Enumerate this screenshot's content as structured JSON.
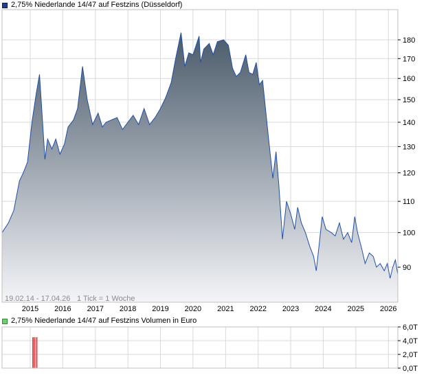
{
  "legend": {
    "main": "2,75% Niederlande 14/47 auf Festzins (Düsseldorf)",
    "volume": "2,75% Niederlande 14/47 auf Festzins Volumen in Euro"
  },
  "info": {
    "range": "19.02.14 - 17.04.26",
    "tick": "1 Tick = 1 Woche"
  },
  "colors": {
    "line": "#1f4fa8",
    "fill_top": "#4a5a6a",
    "fill_bottom": "#f4f5f8",
    "volume_bar": "#d94a4a",
    "grid": "#d9d9d9"
  },
  "chart_data": [
    {
      "type": "area",
      "ylim": [
        80,
        185
      ],
      "y_scale": "log",
      "grid": true,
      "yticks": [
        {
          "value": 90,
          "label": "90"
        },
        {
          "value": 100,
          "label": "100"
        },
        {
          "value": 110,
          "label": "110"
        },
        {
          "value": 120,
          "label": "120"
        },
        {
          "value": 130,
          "label": "130"
        },
        {
          "value": 140,
          "label": "140"
        },
        {
          "value": 150,
          "label": "150"
        },
        {
          "value": 160,
          "label": "160"
        },
        {
          "value": 170,
          "label": "170"
        },
        {
          "value": 180,
          "label": "180"
        }
      ],
      "xlim": [
        "2014-02-19",
        "2026-04-17"
      ],
      "xticks": [
        {
          "date": "2015-01-01",
          "label": "2015"
        },
        {
          "date": "2016-01-01",
          "label": "2016"
        },
        {
          "date": "2017-01-01",
          "label": "2017"
        },
        {
          "date": "2018-01-01",
          "label": "2018"
        },
        {
          "date": "2019-01-01",
          "label": "2019"
        },
        {
          "date": "2020-01-01",
          "label": "2020"
        },
        {
          "date": "2021-01-01",
          "label": "2021"
        },
        {
          "date": "2022-01-01",
          "label": "2022"
        },
        {
          "date": "2023-01-01",
          "label": "2023"
        },
        {
          "date": "2024-01-01",
          "label": "2024"
        },
        {
          "date": "2025-01-01",
          "label": "2025"
        },
        {
          "date": "2026-01-01",
          "label": "2026"
        }
      ],
      "series": [
        {
          "points": [
            [
              "2014-02-19",
              100
            ],
            [
              "2014-05-01",
              103
            ],
            [
              "2014-07-01",
              107
            ],
            [
              "2014-09-01",
              117
            ],
            [
              "2014-10-15",
              120
            ],
            [
              "2014-12-01",
              124
            ],
            [
              "2015-01-20",
              140
            ],
            [
              "2015-03-10",
              153
            ],
            [
              "2015-04-15",
              162
            ],
            [
              "2015-05-20",
              140
            ],
            [
              "2015-06-15",
              125
            ],
            [
              "2015-07-15",
              133
            ],
            [
              "2015-09-01",
              129
            ],
            [
              "2015-10-15",
              133
            ],
            [
              "2015-11-30",
              127
            ],
            [
              "2016-01-20",
              131
            ],
            [
              "2016-03-01",
              138
            ],
            [
              "2016-05-01",
              141
            ],
            [
              "2016-06-15",
              146
            ],
            [
              "2016-08-10",
              166
            ],
            [
              "2016-10-01",
              150
            ],
            [
              "2016-12-01",
              139
            ],
            [
              "2017-02-01",
              144
            ],
            [
              "2017-03-20",
              138
            ],
            [
              "2017-05-01",
              140
            ],
            [
              "2017-07-01",
              141
            ],
            [
              "2017-09-01",
              142
            ],
            [
              "2017-11-01",
              137
            ],
            [
              "2018-01-01",
              140
            ],
            [
              "2018-03-01",
              143
            ],
            [
              "2018-05-01",
              139
            ],
            [
              "2018-07-01",
              146
            ],
            [
              "2018-09-01",
              139
            ],
            [
              "2018-11-01",
              142
            ],
            [
              "2019-01-01",
              146
            ],
            [
              "2019-03-01",
              151
            ],
            [
              "2019-05-01",
              158
            ],
            [
              "2019-06-20",
              170
            ],
            [
              "2019-08-20",
              184
            ],
            [
              "2019-10-01",
              166
            ],
            [
              "2019-11-15",
              173
            ],
            [
              "2020-01-01",
              172
            ],
            [
              "2020-03-10",
              182
            ],
            [
              "2020-03-25",
              168
            ],
            [
              "2020-05-01",
              175
            ],
            [
              "2020-07-01",
              178
            ],
            [
              "2020-08-15",
              172
            ],
            [
              "2020-10-01",
              179
            ],
            [
              "2020-12-10",
              180
            ],
            [
              "2021-02-01",
              177
            ],
            [
              "2021-03-20",
              165
            ],
            [
              "2021-05-01",
              161
            ],
            [
              "2021-06-15",
              163
            ],
            [
              "2021-08-15",
              172
            ],
            [
              "2021-09-20",
              163
            ],
            [
              "2021-11-01",
              162
            ],
            [
              "2021-12-10",
              168
            ],
            [
              "2022-01-15",
              157
            ],
            [
              "2022-02-20",
              159
            ],
            [
              "2022-04-01",
              143
            ],
            [
              "2022-05-01",
              132
            ],
            [
              "2022-06-15",
              118
            ],
            [
              "2022-07-20",
              128
            ],
            [
              "2022-08-20",
              116
            ],
            [
              "2022-10-01",
              98
            ],
            [
              "2022-11-15",
              110
            ],
            [
              "2022-12-31",
              106
            ],
            [
              "2023-02-15",
              101
            ],
            [
              "2023-03-20",
              108
            ],
            [
              "2023-05-01",
              103
            ],
            [
              "2023-06-15",
              100
            ],
            [
              "2023-08-01",
              96
            ],
            [
              "2023-09-15",
              93
            ],
            [
              "2023-10-15",
              89
            ],
            [
              "2023-11-15",
              96
            ],
            [
              "2023-12-20",
              105
            ],
            [
              "2024-02-01",
              101
            ],
            [
              "2024-04-01",
              100
            ],
            [
              "2024-05-15",
              99
            ],
            [
              "2024-07-01",
              103
            ],
            [
              "2024-08-15",
              98
            ],
            [
              "2024-10-01",
              100
            ],
            [
              "2024-11-15",
              97
            ],
            [
              "2024-12-20",
              105
            ],
            [
              "2025-01-20",
              100
            ],
            [
              "2025-03-10",
              95
            ],
            [
              "2025-04-15",
              91
            ],
            [
              "2025-06-01",
              94
            ],
            [
              "2025-07-15",
              93
            ],
            [
              "2025-08-20",
              90
            ],
            [
              "2025-10-01",
              91
            ],
            [
              "2025-11-15",
              89
            ],
            [
              "2025-12-20",
              91
            ],
            [
              "2026-01-20",
              87
            ],
            [
              "2026-02-20",
              90
            ],
            [
              "2026-03-20",
              92
            ],
            [
              "2026-04-17",
              88
            ]
          ]
        }
      ]
    },
    {
      "type": "bar",
      "ylim": [
        0,
        6
      ],
      "unit": "T",
      "grid": true,
      "yticks": [
        {
          "value": 0,
          "label": "0,0T"
        },
        {
          "value": 2,
          "label": "2,0T"
        },
        {
          "value": 4,
          "label": "4,0T"
        },
        {
          "value": 6,
          "label": "6,0T"
        }
      ],
      "bars": [
        {
          "date": "2015-02-01",
          "value": 4.5
        },
        {
          "date": "2015-02-20",
          "value": 4.5
        },
        {
          "date": "2015-03-15",
          "value": 4.5
        }
      ]
    }
  ]
}
